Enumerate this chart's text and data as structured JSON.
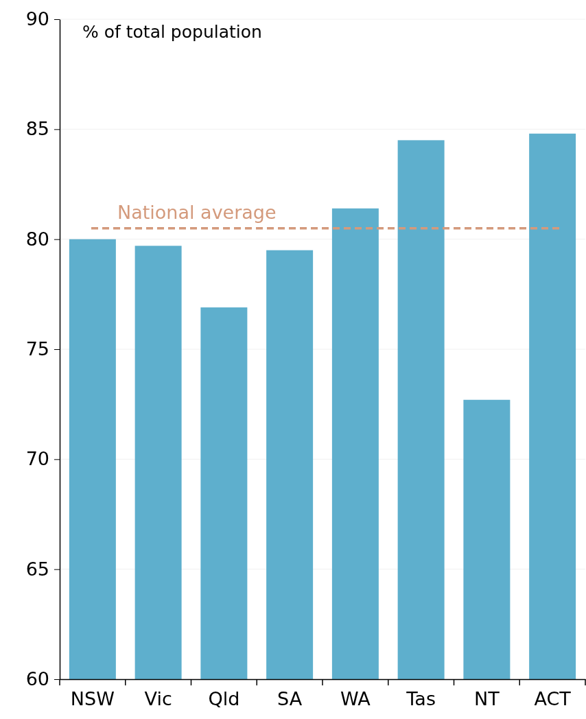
{
  "chart_data": {
    "type": "bar",
    "ylabel": "% of total population",
    "categories": [
      "NSW",
      "Vic",
      "Qld",
      "SA",
      "WA",
      "Tas",
      "NT",
      "ACT"
    ],
    "values": [
      80.0,
      79.7,
      76.9,
      79.5,
      81.4,
      84.5,
      72.7,
      84.8
    ],
    "color": "#5eafcd",
    "ylim": [
      60,
      90
    ],
    "yticks": [
      60,
      65,
      70,
      75,
      80,
      85,
      90
    ],
    "grid": "y",
    "ref_lines": [
      {
        "axis": "y",
        "value": 80.5,
        "label": "National average",
        "color": "#d49a7c",
        "line_style": "dashed"
      }
    ]
  }
}
